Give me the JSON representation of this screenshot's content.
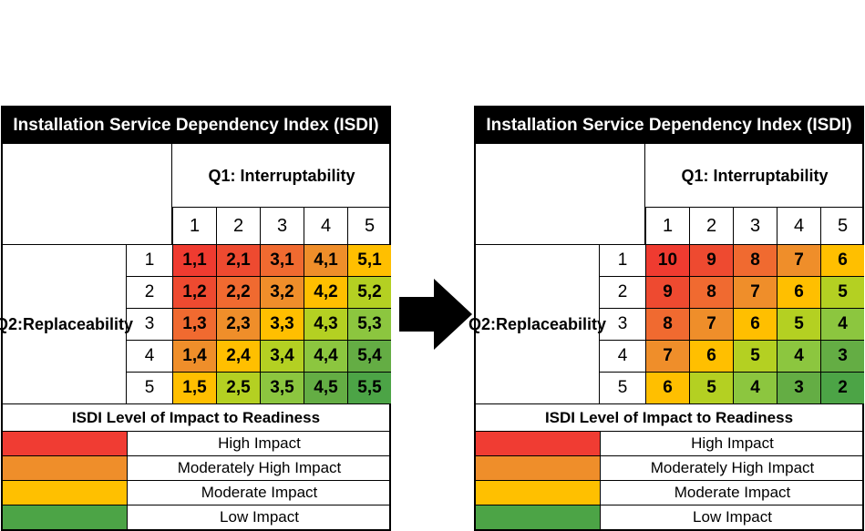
{
  "panels": [
    {
      "title": "Installation Service Dependency Index (ISDI)",
      "q1_label": "Q1: Interruptability",
      "q2_label_line1": "Q2:",
      "q2_label_line2": "Replaceability",
      "columns": [
        "1",
        "2",
        "3",
        "4",
        "5"
      ],
      "rows": [
        "1",
        "2",
        "3",
        "4",
        "5"
      ],
      "cells": [
        [
          "1,1",
          "2,1",
          "3,1",
          "4,1",
          "5,1"
        ],
        [
          "1,2",
          "2,2",
          "3,2",
          "4,2",
          "5,2"
        ],
        [
          "1,3",
          "2,3",
          "3,3",
          "4,3",
          "5,3"
        ],
        [
          "1,4",
          "2,4",
          "3,4",
          "4,4",
          "5,4"
        ],
        [
          "1,5",
          "2,5",
          "3,5",
          "4,5",
          "5,5"
        ]
      ],
      "legend_title": "ISDI Level of Impact to Readiness",
      "legend": [
        {
          "label": "High Impact",
          "color": "#f03c33"
        },
        {
          "label": "Moderately High Impact",
          "color": "#ef8e2a"
        },
        {
          "label": "Moderate Impact",
          "color": "#ffc000"
        },
        {
          "label": "Low Impact",
          "color": "#4ca446"
        }
      ]
    },
    {
      "title": "Installation Service Dependency Index (ISDI)",
      "q1_label": "Q1: Interruptability",
      "q2_label_line1": "Q2:",
      "q2_label_line2": "Replaceability",
      "columns": [
        "1",
        "2",
        "3",
        "4",
        "5"
      ],
      "rows": [
        "1",
        "2",
        "3",
        "4",
        "5"
      ],
      "cells": [
        [
          "10",
          "9",
          "8",
          "7",
          "6"
        ],
        [
          "9",
          "8",
          "7",
          "6",
          "5"
        ],
        [
          "8",
          "7",
          "6",
          "5",
          "4"
        ],
        [
          "7",
          "6",
          "5",
          "4",
          "3"
        ],
        [
          "6",
          "5",
          "4",
          "3",
          "2"
        ]
      ],
      "legend_title": "ISDI Level of Impact to Readiness",
      "legend": [
        {
          "label": "High Impact",
          "color": "#f03c33"
        },
        {
          "label": "Moderately High Impact",
          "color": "#ef8e2a"
        },
        {
          "label": "Moderate Impact",
          "color": "#ffc000"
        },
        {
          "label": "Low Impact",
          "color": "#4ca446"
        }
      ]
    }
  ],
  "cell_colors": [
    [
      "#ef3b30",
      "#ee4a30",
      "#f06a30",
      "#ef8e2a",
      "#ffbf00"
    ],
    [
      "#ee4a30",
      "#f06a30",
      "#ef8e2a",
      "#ffbf00",
      "#b4d022"
    ],
    [
      "#f06a30",
      "#ef8e2a",
      "#ffbf00",
      "#b4d022",
      "#8cc63f"
    ],
    [
      "#ef8e2a",
      "#ffbf00",
      "#b4d022",
      "#8cc63f",
      "#64ad44"
    ],
    [
      "#ffbf00",
      "#b4d022",
      "#8cc63f",
      "#64ad44",
      "#4ca446"
    ]
  ],
  "arrow": {
    "icon": "right-arrow-icon",
    "color": "#000000"
  }
}
